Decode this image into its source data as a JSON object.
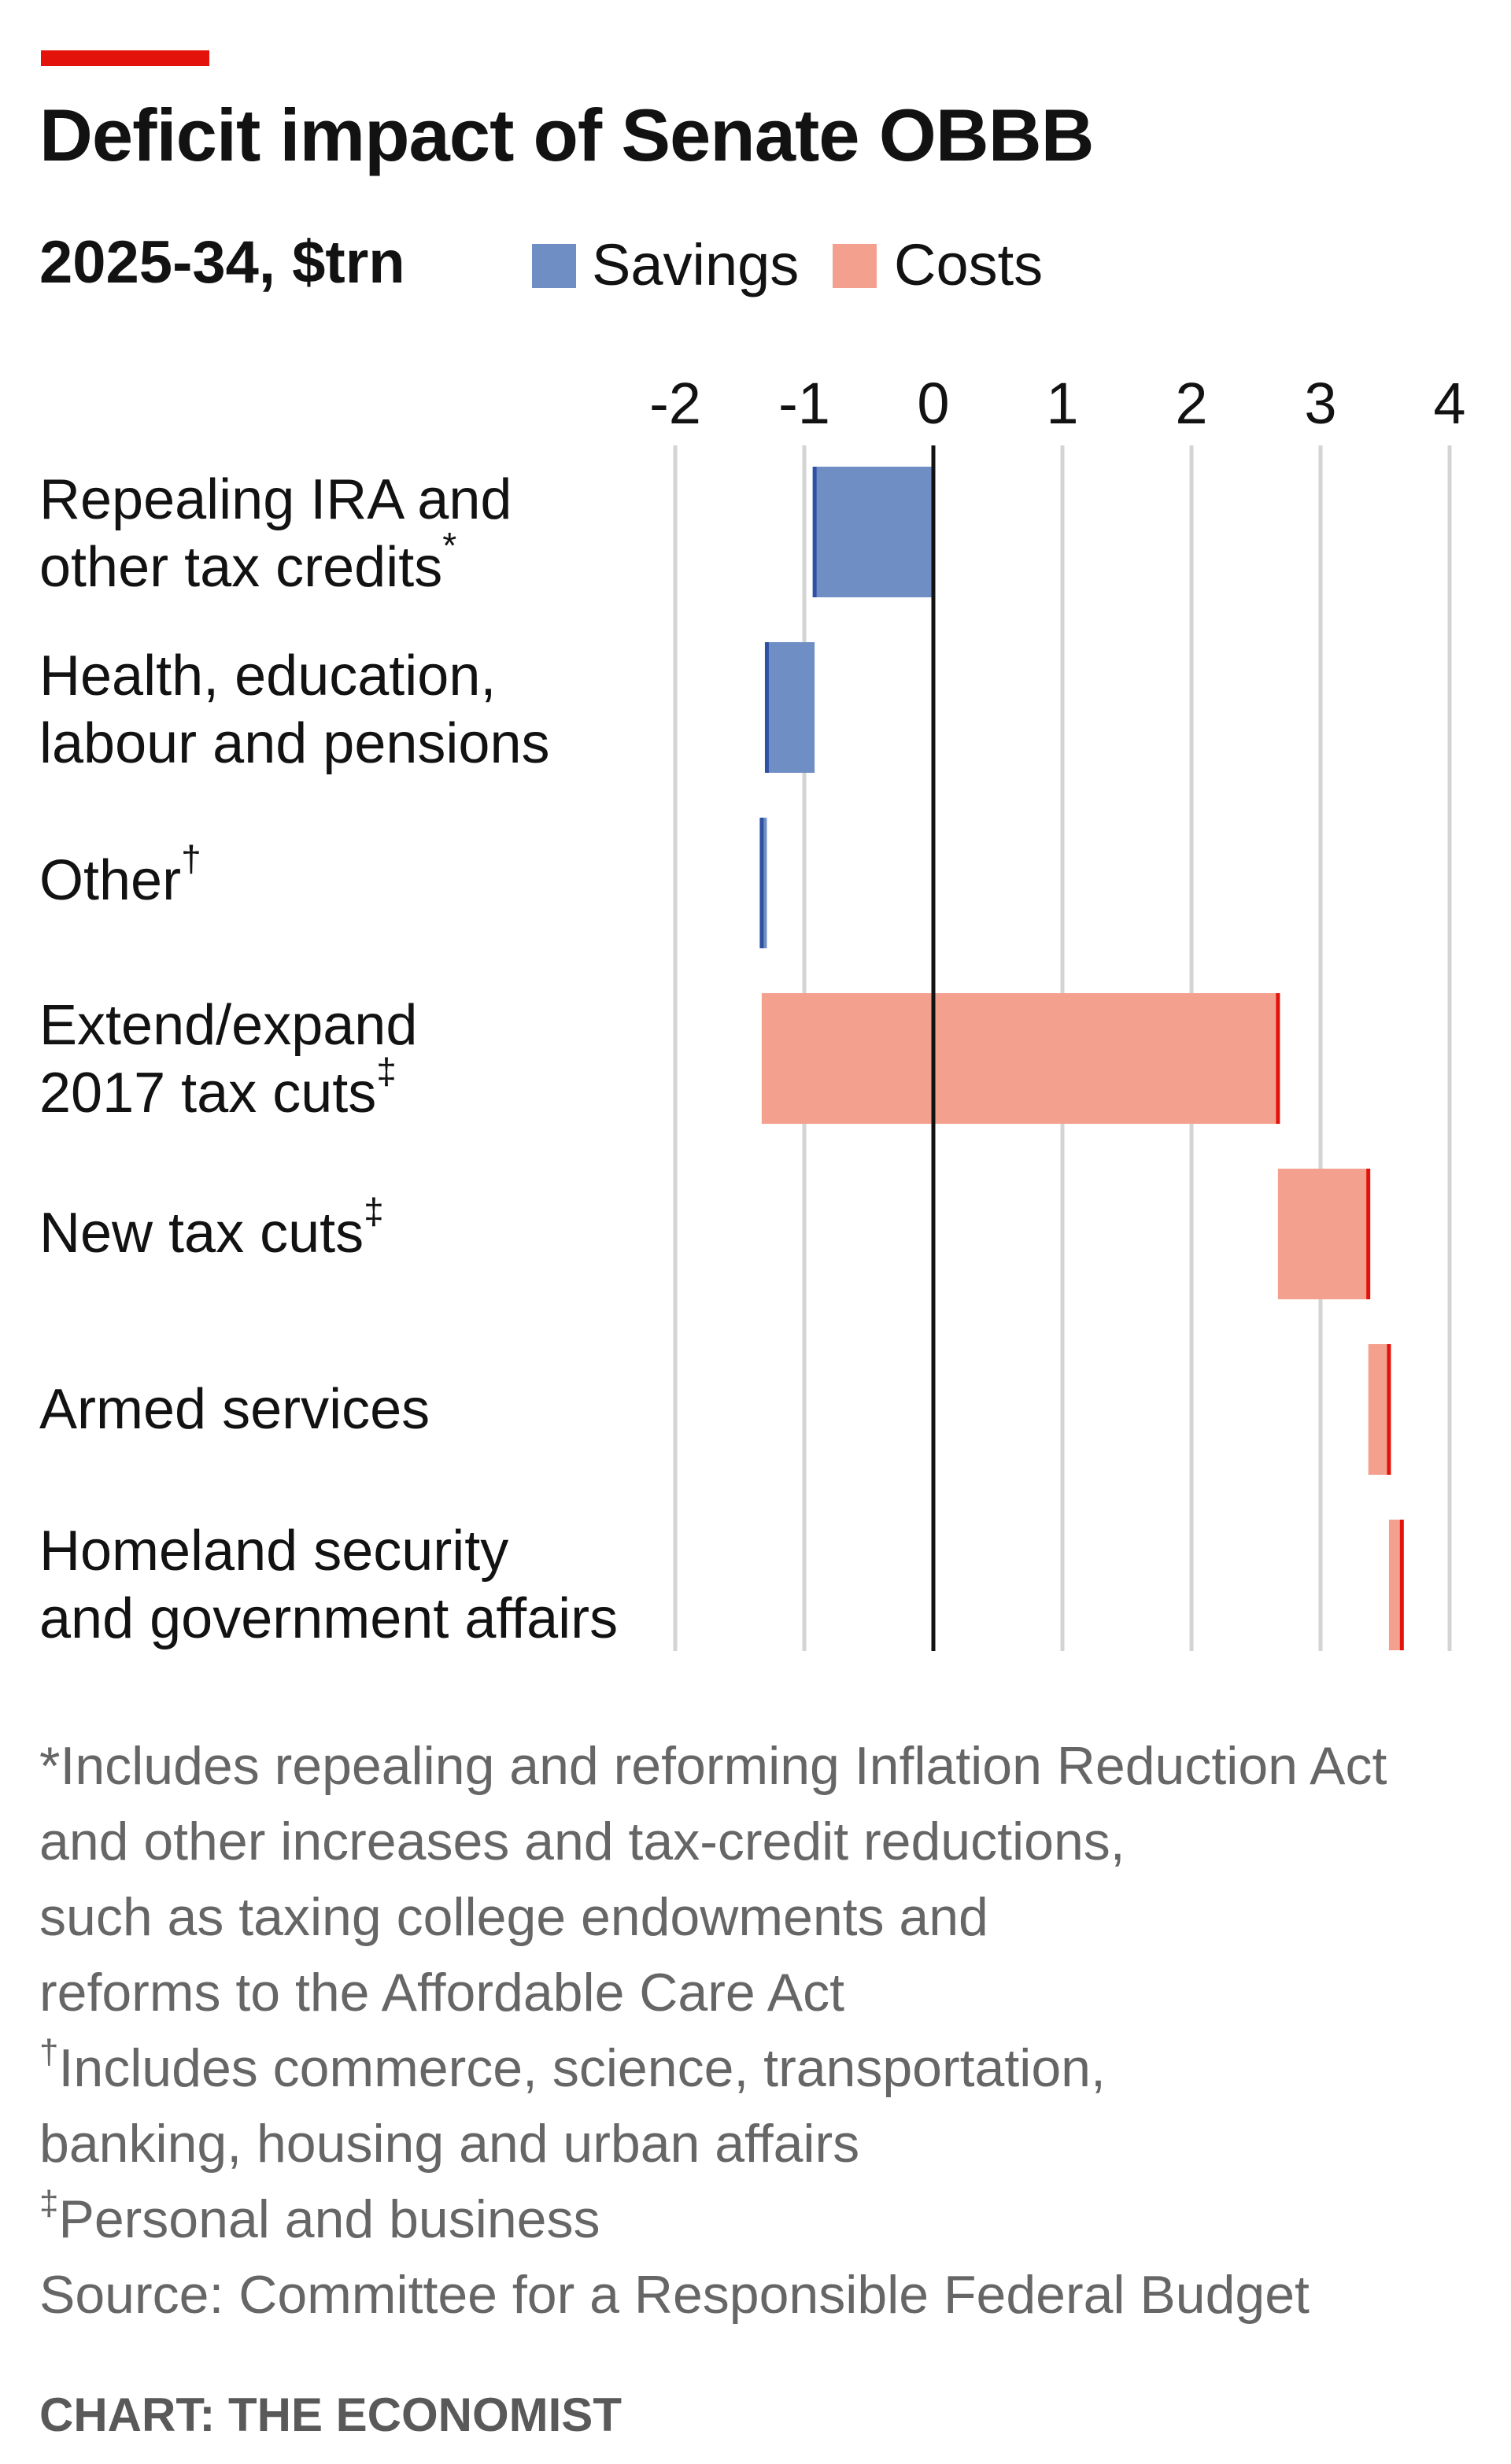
{
  "header": {
    "title": "Deficit impact of Senate OBBB",
    "subtitle": "2025-34, $trn"
  },
  "legend": [
    {
      "label": "Savings",
      "color": "#6f8fc4"
    },
    {
      "label": "Costs",
      "color": "#f4a08e"
    }
  ],
  "colors": {
    "accent_bar": "#e3120b",
    "savings_fill": "#6f8fc4",
    "savings_edge": "#2e52a3",
    "costs_fill": "#f4a08e",
    "costs_edge": "#e3120b",
    "gridline": "#d4d4d4",
    "zero_line": "#121212"
  },
  "chart_data": {
    "type": "bar",
    "subtype": "waterfall-horizontal",
    "title": "Deficit impact of Senate OBBB",
    "subtitle": "2025-34, $trn",
    "xlim": [
      -2,
      4
    ],
    "ticks": [
      "-2",
      "-1",
      "0",
      "1",
      "2",
      "3",
      "4"
    ],
    "grid": true,
    "legend_position": "top",
    "categories": [
      {
        "lines": [
          "Repealing IRA and",
          "other tax credits"
        ],
        "sup": "*"
      },
      {
        "lines": [
          "Health, education,",
          "labour and pensions"
        ],
        "sup": ""
      },
      {
        "lines": [
          "Other"
        ],
        "sup": "†"
      },
      {
        "lines": [
          "Extend/expand",
          "2017 tax cuts"
        ],
        "sup": "‡"
      },
      {
        "lines": [
          "New tax cuts"
        ],
        "sup": "‡"
      },
      {
        "lines": [
          "Armed services"
        ],
        "sup": ""
      },
      {
        "lines": [
          "Homeland security",
          "and government affairs"
        ],
        "sup": ""
      }
    ],
    "values": [
      -0.92,
      -0.37,
      -0.04,
      4.0,
      0.7,
      0.16,
      0.1
    ],
    "types": [
      "savings",
      "savings",
      "savings",
      "costs",
      "costs",
      "costs",
      "costs"
    ]
  },
  "footnotes": [
    {
      "sup": "",
      "text": "*Includes repealing and reforming Inflation Reduction Act"
    },
    {
      "sup": "",
      "text": "and other increases and tax-credit reductions,"
    },
    {
      "sup": "",
      "text": "such as taxing college endowments and"
    },
    {
      "sup": "",
      "text": "reforms to the Affordable Care Act"
    },
    {
      "sup": "†",
      "text": "Includes commerce, science, transportation,"
    },
    {
      "sup": "",
      "text": "banking, housing and urban affairs"
    },
    {
      "sup": "‡",
      "text": "Personal and business"
    },
    {
      "sup": "",
      "text": "Source: Committee for a Responsible Federal Budget"
    }
  ],
  "credit": "CHART: THE ECONOMIST"
}
